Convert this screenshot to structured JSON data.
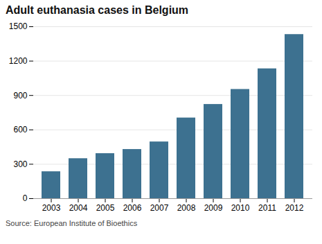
{
  "chart_data": {
    "type": "bar",
    "title": "Adult euthanasia cases in Belgium",
    "categories": [
      "2003",
      "2004",
      "2005",
      "2006",
      "2007",
      "2008",
      "2009",
      "2010",
      "2011",
      "2012"
    ],
    "values": [
      235,
      349,
      393,
      429,
      495,
      704,
      822,
      953,
      1133,
      1432
    ],
    "color": "#3d7190",
    "ylim": [
      0,
      1500
    ],
    "yticks": [
      0,
      300,
      600,
      900,
      1200,
      1500
    ],
    "grid": true,
    "annotations": [
      "Source: European Institute of Bioethics"
    ]
  }
}
